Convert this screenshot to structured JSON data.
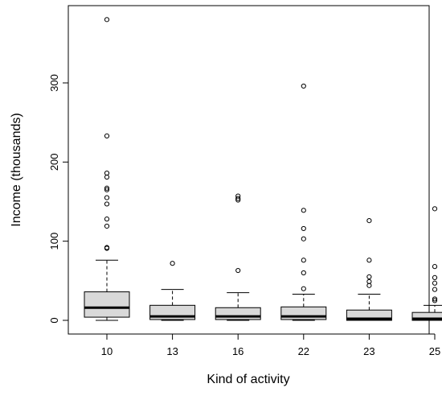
{
  "chart_data": {
    "type": "boxplot",
    "xlabel": "Kind of activity",
    "ylabel": "Income (thousands)",
    "ylim": [
      0,
      380
    ],
    "yticks": [
      0,
      100,
      200,
      300
    ],
    "categories": [
      "10",
      "13",
      "16",
      "22",
      "23",
      "25"
    ],
    "box_fill": "#d9d9d9",
    "boxes": [
      {
        "category": "10",
        "min": 0,
        "q1": 4,
        "median": 16,
        "q3": 36,
        "max": 76,
        "outliers": [
          380,
          233,
          186,
          181,
          167,
          165,
          155,
          147,
          128,
          119,
          92,
          91
        ]
      },
      {
        "category": "13",
        "min": 0,
        "q1": 1,
        "median": 5,
        "q3": 19,
        "max": 39,
        "outliers": [
          72
        ]
      },
      {
        "category": "16",
        "min": 0,
        "q1": 1,
        "median": 5,
        "q3": 16,
        "max": 35,
        "outliers": [
          157,
          154,
          152,
          63
        ]
      },
      {
        "category": "22",
        "min": 0,
        "q1": 1,
        "median": 5,
        "q3": 17,
        "max": 33,
        "outliers": [
          296,
          139,
          116,
          103,
          76,
          60,
          40
        ]
      },
      {
        "category": "23",
        "min": 0,
        "q1": 0,
        "median": 2,
        "q3": 13,
        "max": 33,
        "outliers": [
          126,
          76,
          55,
          49,
          44
        ]
      },
      {
        "category": "25",
        "min": 0,
        "q1": 0,
        "median": 2,
        "q3": 10,
        "max": 19,
        "outliers": [
          141,
          68,
          54,
          47,
          39,
          27,
          25
        ]
      }
    ]
  }
}
